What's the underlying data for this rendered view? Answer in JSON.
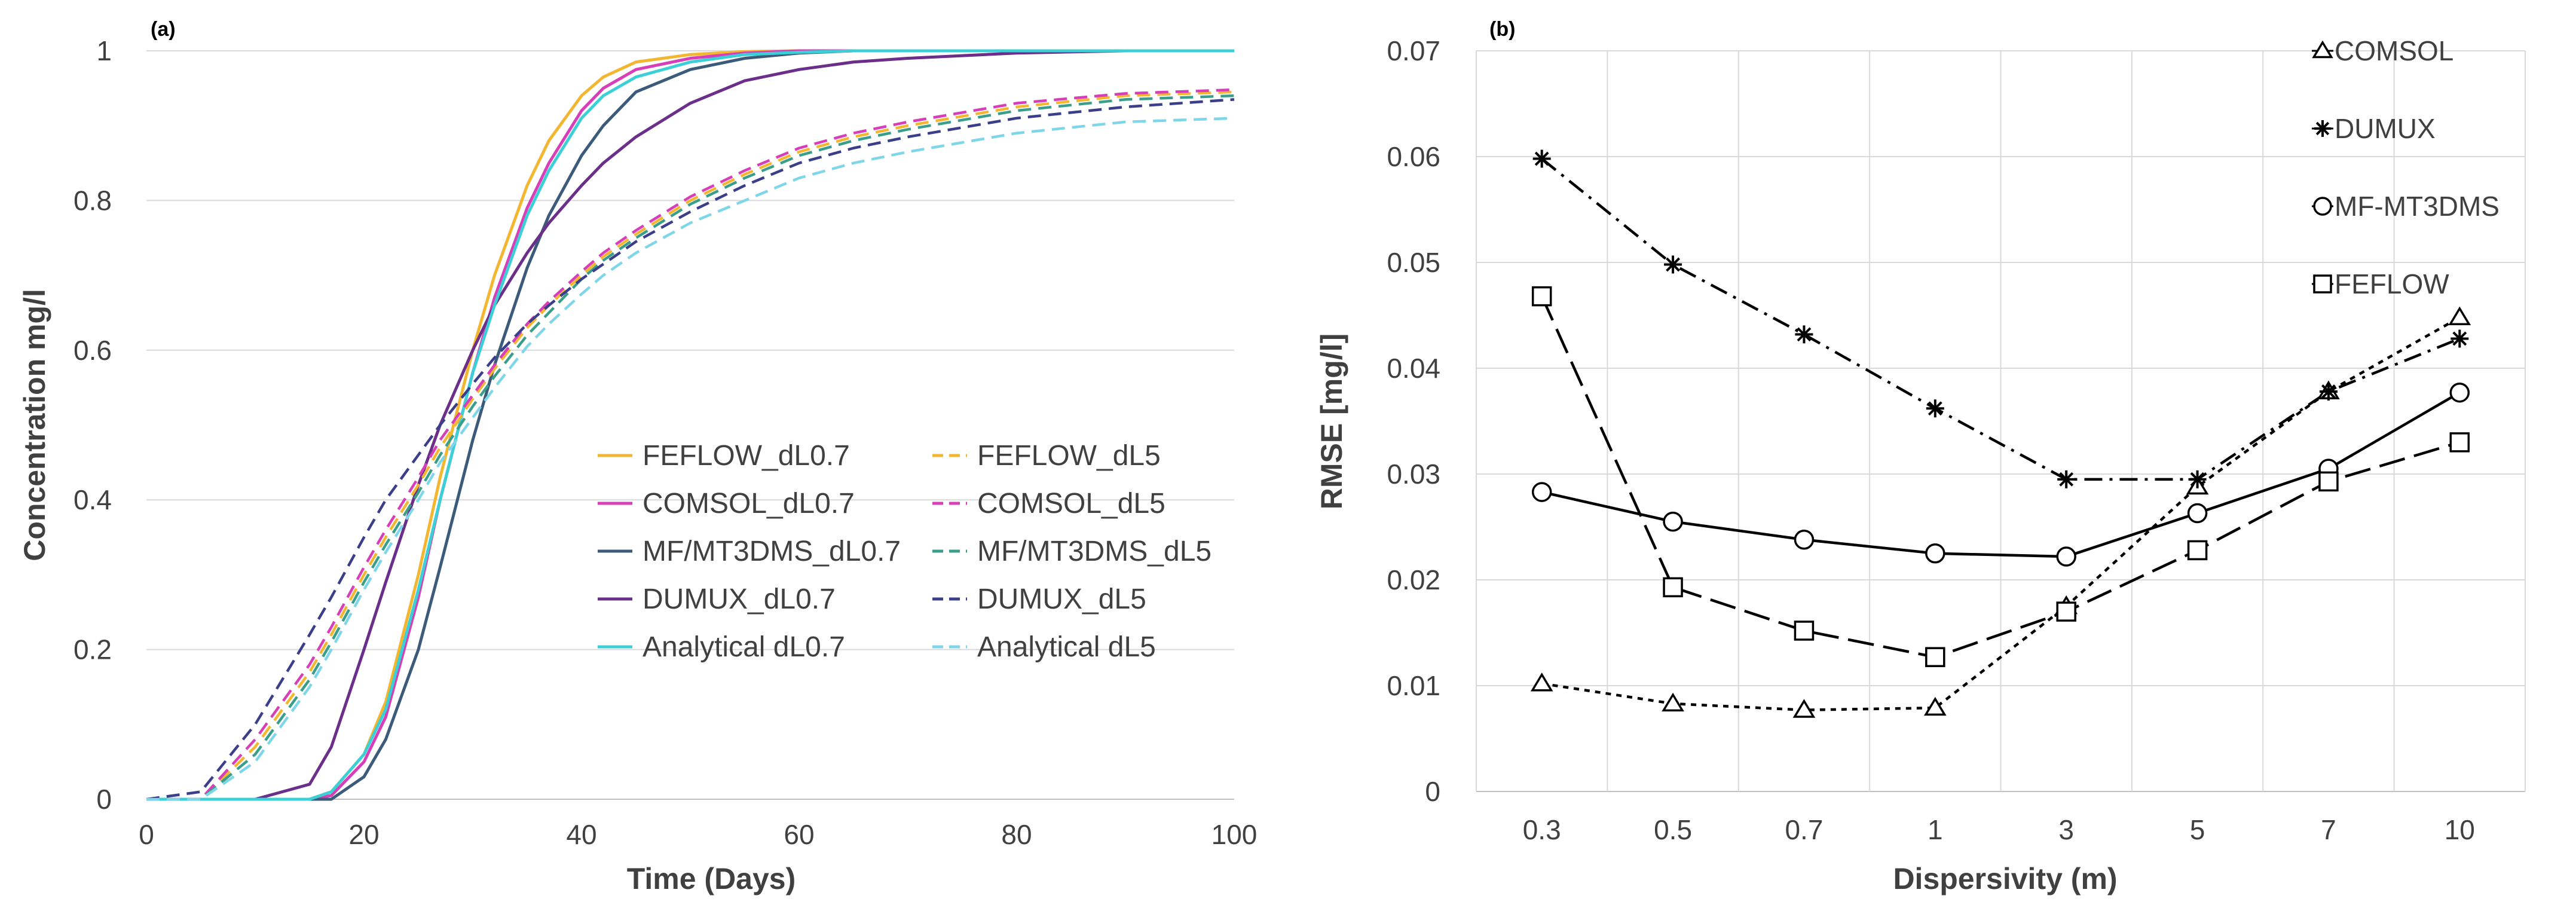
{
  "chart_data": [
    {
      "type": "line",
      "panel_label": "(a)",
      "title": "",
      "xlabel": "Time (Days)",
      "ylabel": "Concentration mg/l",
      "xlim": [
        0,
        100
      ],
      "ylim": [
        0,
        1
      ],
      "x_ticks": [
        "0",
        "20",
        "40",
        "60",
        "80",
        "100"
      ],
      "y_ticks": [
        "0",
        "0.2",
        "0.4",
        "0.6",
        "0.8",
        "1"
      ],
      "grid": "horizontal",
      "legend_position": "center-right",
      "x": [
        0,
        5,
        10,
        15,
        17,
        20,
        22,
        25,
        27,
        30,
        32,
        35,
        37,
        40,
        42,
        45,
        50,
        55,
        60,
        65,
        70,
        80,
        90,
        100
      ],
      "series": [
        {
          "name": "FEFLOW_dL0.7",
          "color": "#f2b630",
          "style": "solid",
          "values": [
            0,
            0,
            0,
            0,
            0.01,
            0.06,
            0.13,
            0.3,
            0.43,
            0.6,
            0.7,
            0.82,
            0.88,
            0.94,
            0.965,
            0.985,
            0.995,
            0.999,
            1,
            1,
            1,
            1,
            1,
            1
          ]
        },
        {
          "name": "COMSOL_dL0.7",
          "color": "#d63fb8",
          "style": "solid",
          "values": [
            0,
            0,
            0,
            0,
            0.005,
            0.05,
            0.11,
            0.27,
            0.4,
            0.57,
            0.67,
            0.79,
            0.85,
            0.92,
            0.95,
            0.975,
            0.99,
            0.997,
            1,
            1,
            1,
            1,
            1,
            1
          ]
        },
        {
          "name": "MF/MT3DMS_dL0.7",
          "color": "#3c5a7a",
          "style": "solid",
          "values": [
            0,
            0,
            0,
            0,
            0,
            0.03,
            0.08,
            0.2,
            0.31,
            0.48,
            0.58,
            0.71,
            0.78,
            0.86,
            0.9,
            0.945,
            0.975,
            0.99,
            0.997,
            1,
            1,
            1,
            1,
            1
          ]
        },
        {
          "name": "DUMUX_dL0.7",
          "color": "#6b2f8a",
          "style": "solid",
          "values": [
            0,
            0,
            0,
            0.02,
            0.07,
            0.2,
            0.29,
            0.42,
            0.5,
            0.6,
            0.66,
            0.73,
            0.77,
            0.82,
            0.85,
            0.885,
            0.93,
            0.96,
            0.975,
            0.985,
            0.99,
            0.997,
            1,
            1
          ]
        },
        {
          "name": "Analytical dL0.7",
          "color": "#3ccfd6",
          "style": "solid",
          "values": [
            0,
            0,
            0,
            0,
            0.01,
            0.06,
            0.12,
            0.28,
            0.4,
            0.57,
            0.66,
            0.78,
            0.84,
            0.91,
            0.94,
            0.965,
            0.985,
            0.995,
            0.998,
            1,
            1,
            1,
            1,
            1
          ]
        },
        {
          "name": "FEFLOW_dL5",
          "color": "#f2b630",
          "style": "dashed",
          "values": [
            0,
            0,
            0.07,
            0.17,
            0.22,
            0.3,
            0.35,
            0.42,
            0.47,
            0.535,
            0.575,
            0.63,
            0.66,
            0.7,
            0.725,
            0.755,
            0.8,
            0.835,
            0.865,
            0.885,
            0.9,
            0.925,
            0.94,
            0.945
          ]
        },
        {
          "name": "COMSOL_dL5",
          "color": "#d63fb8",
          "style": "dashed",
          "values": [
            0,
            0,
            0.08,
            0.18,
            0.23,
            0.31,
            0.36,
            0.43,
            0.48,
            0.54,
            0.58,
            0.635,
            0.665,
            0.705,
            0.73,
            0.76,
            0.805,
            0.84,
            0.87,
            0.89,
            0.905,
            0.93,
            0.943,
            0.948
          ]
        },
        {
          "name": "MF/MT3DMS_dL5",
          "color": "#3a9e8a",
          "style": "dashed",
          "values": [
            0,
            0,
            0.06,
            0.16,
            0.21,
            0.29,
            0.34,
            0.41,
            0.46,
            0.525,
            0.565,
            0.62,
            0.65,
            0.695,
            0.72,
            0.75,
            0.795,
            0.83,
            0.86,
            0.88,
            0.895,
            0.92,
            0.935,
            0.94
          ]
        },
        {
          "name": "DUMUX_dL5",
          "color": "#3b3f8a",
          "style": "dashed",
          "values": [
            0,
            0.01,
            0.1,
            0.22,
            0.27,
            0.35,
            0.4,
            0.46,
            0.5,
            0.555,
            0.59,
            0.635,
            0.66,
            0.695,
            0.715,
            0.745,
            0.785,
            0.82,
            0.85,
            0.87,
            0.885,
            0.91,
            0.925,
            0.935
          ]
        },
        {
          "name": "Analytical dL5",
          "color": "#7fd6e8",
          "style": "dashed",
          "values": [
            0,
            0,
            0.05,
            0.15,
            0.2,
            0.28,
            0.33,
            0.4,
            0.45,
            0.51,
            0.55,
            0.605,
            0.635,
            0.675,
            0.7,
            0.73,
            0.77,
            0.8,
            0.83,
            0.85,
            0.865,
            0.89,
            0.905,
            0.91
          ]
        }
      ],
      "legend_order": [
        "FEFLOW_dL0.7",
        "FEFLOW_dL5",
        "COMSOL_dL0.7",
        "COMSOL_dL5",
        "MF/MT3DMS_dL0.7",
        "MF/MT3DMS_dL5",
        "DUMUX_dL0.7",
        "DUMUX_dL5",
        "Analytical dL0.7",
        "Analytical dL5"
      ]
    },
    {
      "type": "line",
      "panel_label": "(b)",
      "title": "",
      "xlabel": "Dispersivity (m)",
      "ylabel": "RMSE [mg/l]",
      "categories": [
        "0.3",
        "0.5",
        "0.7",
        "1",
        "3",
        "5",
        "7",
        "10"
      ],
      "ylim": [
        0,
        0.07
      ],
      "y_ticks": [
        "0",
        "0.01",
        "0.02",
        "0.03",
        "0.04",
        "0.05",
        "0.06",
        "0.07"
      ],
      "grid": "both",
      "legend_position": "top-right",
      "series": [
        {
          "name": "COMSOL",
          "marker": "triangle",
          "style": "dotted",
          "values": [
            0.0102,
            0.0083,
            0.0077,
            0.0079,
            0.0175,
            0.0288,
            0.0378,
            0.0448
          ]
        },
        {
          "name": "DUMUX",
          "marker": "asterisk",
          "style": "dashdot",
          "values": [
            0.0598,
            0.0498,
            0.0432,
            0.0362,
            0.0295,
            0.0295,
            0.0378,
            0.0428
          ]
        },
        {
          "name": "MF-MT3DMS",
          "marker": "circle",
          "style": "solid",
          "values": [
            0.0283,
            0.0255,
            0.0238,
            0.0225,
            0.0222,
            0.0263,
            0.0305,
            0.0377
          ]
        },
        {
          "name": "FEFLOW",
          "marker": "square",
          "style": "longdash",
          "values": [
            0.0468,
            0.0193,
            0.0152,
            0.0127,
            0.017,
            0.0228,
            0.0293,
            0.033
          ]
        }
      ]
    }
  ]
}
